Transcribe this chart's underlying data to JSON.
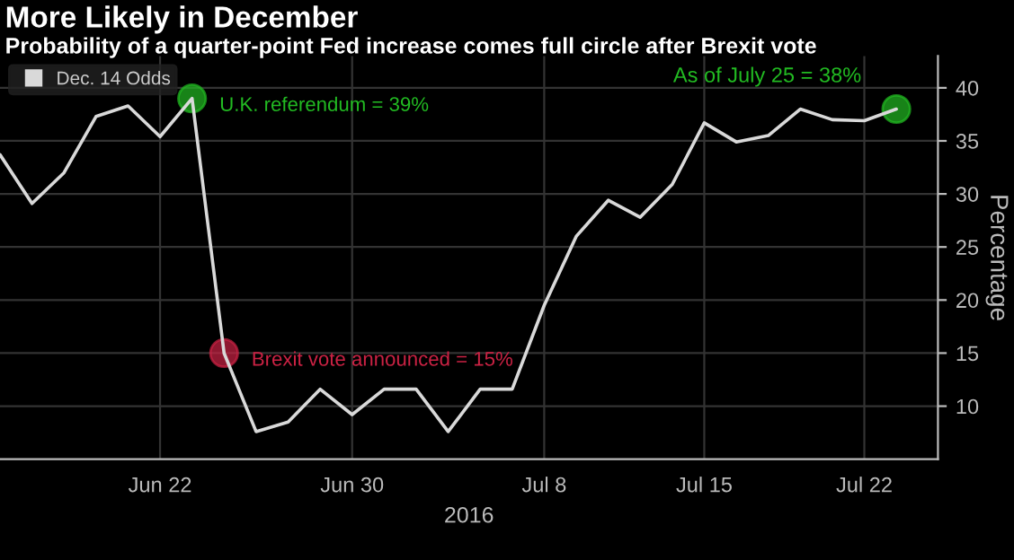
{
  "chart_data": {
    "type": "line",
    "title": "More Likely in December",
    "subtitle": "Probability of a quarter-point Fed increase comes full circle after Brexit vote",
    "xlabel": "2016",
    "ylabel": "Percentage",
    "categories": [
      null,
      null,
      null,
      null,
      null,
      "Jun 22",
      null,
      null,
      null,
      null,
      null,
      "Jun 30",
      null,
      null,
      null,
      null,
      null,
      "Jul 8",
      null,
      null,
      null,
      null,
      "Jul 15",
      null,
      null,
      null,
      null,
      "Jul 22",
      null
    ],
    "series": [
      {
        "name": "Dec. 14 Odds",
        "color": "#d9d9d9",
        "marker": "none",
        "values": [
          33.7,
          29.1,
          32.0,
          37.3,
          38.3,
          35.4,
          39,
          15,
          7.6,
          8.5,
          11.6,
          9.2,
          11.6,
          11.6,
          7.6,
          11.6,
          11.6,
          19.5,
          26.0,
          29.4,
          27.8,
          30.9,
          36.7,
          34.9,
          35.5,
          38.0,
          37.0,
          36.9,
          38
        ]
      },
      {
        "type": "scatter",
        "marker": "circle",
        "values": [
          null,
          null,
          null,
          null,
          null,
          null,
          39,
          15,
          null,
          null,
          null,
          null,
          null,
          null,
          null,
          null,
          null,
          null,
          null,
          null,
          null,
          null,
          null,
          null,
          null,
          null,
          null,
          null,
          38
        ],
        "colors": [
          null,
          null,
          null,
          null,
          null,
          null,
          "#22bb22",
          "#cc2244",
          null,
          null,
          null,
          null,
          null,
          null,
          null,
          null,
          null,
          null,
          null,
          null,
          null,
          null,
          null,
          null,
          null,
          null,
          null,
          null,
          "#22bb22"
        ]
      }
    ],
    "ylim": [
      5,
      43
    ],
    "yticks": [
      10,
      15,
      20,
      25,
      30,
      35,
      40
    ],
    "grid": true,
    "legend": "top left",
    "line_style": "solid",
    "annotations": [
      "U.K. referendum = 39%",
      "Brexit vote announced = 15%",
      "As of July 25 = 38%"
    ]
  }
}
